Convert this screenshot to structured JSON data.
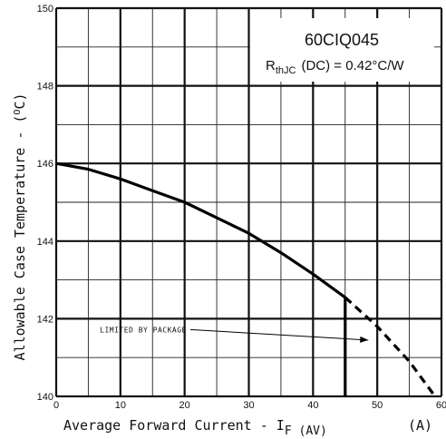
{
  "chart_data": {
    "type": "line",
    "title": "60CIQ045",
    "subtitle": {
      "main": "R",
      "sub": "thJC",
      "rest": "(DC) = 0.42°C/W"
    },
    "xlabel": {
      "main": "Average Forward Current - I",
      "sub": "F (AV)",
      "unit": "(A)"
    },
    "ylabel": {
      "main": "Allowable Case Temperature - (",
      "sup": "O",
      "rest": "C)"
    },
    "xlim": [
      0,
      60
    ],
    "ylim": [
      140,
      150
    ],
    "x_ticks": [
      0,
      10,
      20,
      30,
      40,
      50,
      60
    ],
    "y_ticks": [
      140,
      142,
      144,
      146,
      148,
      150
    ],
    "grid": true,
    "series": [
      {
        "style": "solid",
        "x": [
          0,
          5,
          10,
          15,
          20,
          25,
          30,
          35,
          40,
          45
        ],
        "y": [
          146.0,
          145.85,
          145.6,
          145.3,
          145.0,
          144.6,
          144.2,
          143.7,
          143.15,
          142.55
        ]
      },
      {
        "style": "vertical-limit",
        "x": [
          45,
          45
        ],
        "y": [
          142.55,
          140
        ]
      },
      {
        "style": "dashed",
        "x": [
          45,
          50,
          55,
          59
        ],
        "y": [
          142.55,
          141.8,
          140.9,
          140.0
        ]
      }
    ],
    "annotation": {
      "text": "LIMITED BY PACKAGE",
      "x": 6.8,
      "y": 141.65,
      "arrow_to": [
        48.6,
        141.45
      ]
    }
  }
}
